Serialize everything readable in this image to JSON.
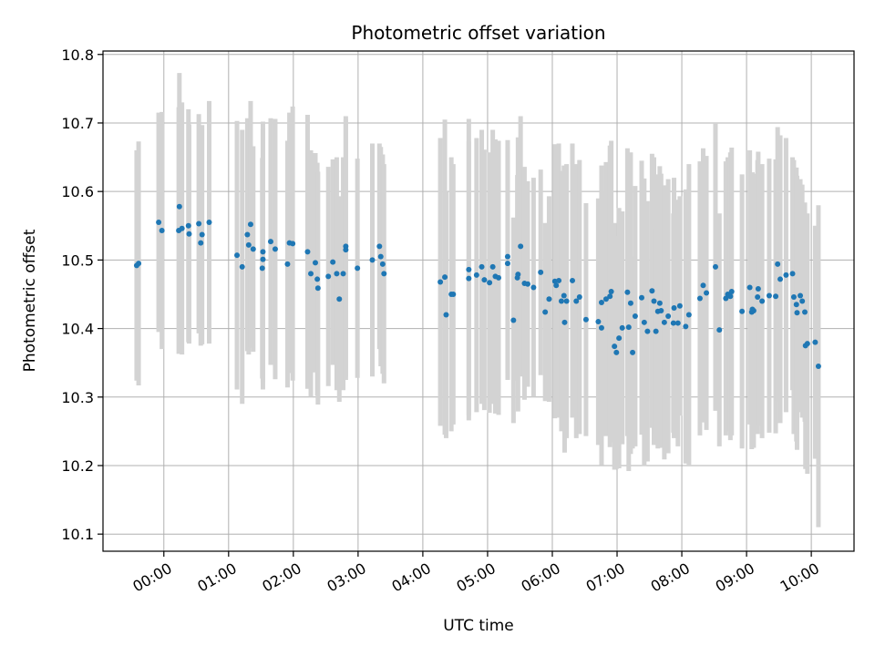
{
  "chart_data": {
    "type": "scatter",
    "title": "Photometric offset variation",
    "xlabel": "UTC time",
    "ylabel": "Photometric offset",
    "xlim_hours": [
      -0.94,
      10.66
    ],
    "ylim": [
      10.075,
      10.805
    ],
    "x_ticks": [
      {
        "hour": 0,
        "label": "00:00"
      },
      {
        "hour": 1,
        "label": "01:00"
      },
      {
        "hour": 2,
        "label": "02:00"
      },
      {
        "hour": 3,
        "label": "03:00"
      },
      {
        "hour": 4,
        "label": "04:00"
      },
      {
        "hour": 5,
        "label": "05:00"
      },
      {
        "hour": 6,
        "label": "06:00"
      },
      {
        "hour": 7,
        "label": "07:00"
      },
      {
        "hour": 8,
        "label": "08:00"
      },
      {
        "hour": 9,
        "label": "09:00"
      },
      {
        "hour": 10,
        "label": "10:00"
      }
    ],
    "y_ticks": [
      {
        "value": 10.1,
        "label": "10.1"
      },
      {
        "value": 10.2,
        "label": "10.2"
      },
      {
        "value": 10.3,
        "label": "10.3"
      },
      {
        "value": 10.4,
        "label": "10.4"
      },
      {
        "value": 10.5,
        "label": "10.5"
      },
      {
        "value": 10.6,
        "label": "10.6"
      },
      {
        "value": 10.7,
        "label": "10.7"
      },
      {
        "value": 10.8,
        "label": "10.8"
      }
    ],
    "grid": true,
    "colors": {
      "point": "#1f77b4",
      "errorbar": "#d3d3d3",
      "grid": "#b0b0b0"
    },
    "series": [
      {
        "name": "offset",
        "points": [
          [
            -0.42,
            10.492,
            0.168
          ],
          [
            -0.39,
            10.495,
            0.178
          ],
          [
            -0.08,
            10.555,
            0.16
          ],
          [
            -0.03,
            10.543,
            0.173
          ],
          [
            0.23,
            10.543,
            0.18
          ],
          [
            0.24,
            10.578,
            0.195
          ],
          [
            0.28,
            10.546,
            0.184
          ],
          [
            0.38,
            10.55,
            0.17
          ],
          [
            0.39,
            10.538,
            0.16
          ],
          [
            0.54,
            10.553,
            0.16
          ],
          [
            0.57,
            10.525,
            0.15
          ],
          [
            0.59,
            10.537,
            0.16
          ],
          [
            0.7,
            10.555,
            0.177
          ],
          [
            1.13,
            10.507,
            0.196
          ],
          [
            1.21,
            10.49,
            0.2
          ],
          [
            1.29,
            10.537,
            0.17
          ],
          [
            1.31,
            10.522,
            0.16
          ],
          [
            1.34,
            10.552,
            0.18
          ],
          [
            1.38,
            10.516,
            0.15
          ],
          [
            1.52,
            10.488,
            0.161
          ],
          [
            1.53,
            10.512,
            0.19
          ],
          [
            1.53,
            10.501,
            0.19
          ],
          [
            1.65,
            10.527,
            0.18
          ],
          [
            1.72,
            10.516,
            0.19
          ],
          [
            1.91,
            10.494,
            0.18
          ],
          [
            1.94,
            10.525,
            0.19
          ],
          [
            1.99,
            10.524,
            0.2
          ],
          [
            2.22,
            10.512,
            0.2
          ],
          [
            2.27,
            10.48,
            0.18
          ],
          [
            2.34,
            10.496,
            0.16
          ],
          [
            2.37,
            10.472,
            0.17
          ],
          [
            2.38,
            10.459,
            0.17
          ],
          [
            2.54,
            10.476,
            0.16
          ],
          [
            2.61,
            10.497,
            0.15
          ],
          [
            2.67,
            10.48,
            0.17
          ],
          [
            2.71,
            10.443,
            0.15
          ],
          [
            2.77,
            10.48,
            0.17
          ],
          [
            2.81,
            10.52,
            0.19
          ],
          [
            2.81,
            10.515,
            0.19
          ],
          [
            2.99,
            10.488,
            0.16
          ],
          [
            3.22,
            10.5,
            0.17
          ],
          [
            3.33,
            10.52,
            0.15
          ],
          [
            3.35,
            10.505,
            0.16
          ],
          [
            3.38,
            10.494,
            0.16
          ],
          [
            3.4,
            10.48,
            0.16
          ],
          [
            4.27,
            10.468,
            0.21
          ],
          [
            4.34,
            10.475,
            0.23
          ],
          [
            4.36,
            10.42,
            0.18
          ],
          [
            4.44,
            10.45,
            0.2
          ],
          [
            4.47,
            10.45,
            0.19
          ],
          [
            4.71,
            10.473,
            0.2
          ],
          [
            4.71,
            10.486,
            0.22
          ],
          [
            4.83,
            10.478,
            0.2
          ],
          [
            4.91,
            10.49,
            0.2
          ],
          [
            4.95,
            10.471,
            0.19
          ],
          [
            5.03,
            10.467,
            0.19
          ],
          [
            5.08,
            10.49,
            0.2
          ],
          [
            5.12,
            10.476,
            0.2
          ],
          [
            5.17,
            10.474,
            0.2
          ],
          [
            5.31,
            10.505,
            0.17
          ],
          [
            5.31,
            10.495,
            0.17
          ],
          [
            5.4,
            10.412,
            0.15
          ],
          [
            5.46,
            10.474,
            0.15
          ],
          [
            5.47,
            10.479,
            0.2
          ],
          [
            5.51,
            10.52,
            0.19
          ],
          [
            5.57,
            10.466,
            0.17
          ],
          [
            5.62,
            10.465,
            0.15
          ],
          [
            5.71,
            10.46,
            0.16
          ],
          [
            5.82,
            10.482,
            0.15
          ],
          [
            5.89,
            10.424,
            0.13
          ],
          [
            5.95,
            10.443,
            0.15
          ],
          [
            6.04,
            10.469,
            0.2
          ],
          [
            6.06,
            10.463,
            0.19
          ],
          [
            6.1,
            10.47,
            0.2
          ],
          [
            6.14,
            10.44,
            0.19
          ],
          [
            6.18,
            10.448,
            0.19
          ],
          [
            6.19,
            10.409,
            0.19
          ],
          [
            6.22,
            10.44,
            0.2
          ],
          [
            6.31,
            10.47,
            0.2
          ],
          [
            6.37,
            10.44,
            0.2
          ],
          [
            6.42,
            10.446,
            0.2
          ],
          [
            6.52,
            10.413,
            0.17
          ],
          [
            6.71,
            10.41,
            0.18
          ],
          [
            6.76,
            10.438,
            0.2
          ],
          [
            6.76,
            10.401,
            0.2
          ],
          [
            6.83,
            10.443,
            0.2
          ],
          [
            6.89,
            10.447,
            0.22
          ],
          [
            6.91,
            10.454,
            0.22
          ],
          [
            6.96,
            10.374,
            0.18
          ],
          [
            6.99,
            10.365,
            0.17
          ],
          [
            7.03,
            10.386,
            0.19
          ],
          [
            7.08,
            10.401,
            0.17
          ],
          [
            7.16,
            10.453,
            0.21
          ],
          [
            7.18,
            10.402,
            0.21
          ],
          [
            7.21,
            10.437,
            0.22
          ],
          [
            7.24,
            10.365,
            0.14
          ],
          [
            7.28,
            10.418,
            0.19
          ],
          [
            7.38,
            10.445,
            0.2
          ],
          [
            7.42,
            10.409,
            0.21
          ],
          [
            7.47,
            10.396,
            0.19
          ],
          [
            7.54,
            10.455,
            0.2
          ],
          [
            7.57,
            10.44,
            0.21
          ],
          [
            7.6,
            10.396,
            0.15
          ],
          [
            7.63,
            10.425,
            0.2
          ],
          [
            7.66,
            10.437,
            0.2
          ],
          [
            7.68,
            10.426,
            0.2
          ],
          [
            7.73,
            10.409,
            0.2
          ],
          [
            7.79,
            10.418,
            0.2
          ],
          [
            7.87,
            10.408,
            0.16
          ],
          [
            7.88,
            10.43,
            0.19
          ],
          [
            7.94,
            10.408,
            0.18
          ],
          [
            7.97,
            10.433,
            0.16
          ],
          [
            8.06,
            10.403,
            0.2
          ],
          [
            8.11,
            10.42,
            0.22
          ],
          [
            8.28,
            10.444,
            0.2
          ],
          [
            8.33,
            10.463,
            0.2
          ],
          [
            8.38,
            10.452,
            0.2
          ],
          [
            8.52,
            10.49,
            0.21
          ],
          [
            8.58,
            10.398,
            0.17
          ],
          [
            8.68,
            10.444,
            0.2
          ],
          [
            8.71,
            10.45,
            0.2
          ],
          [
            8.75,
            10.447,
            0.21
          ],
          [
            8.77,
            10.454,
            0.21
          ],
          [
            8.93,
            10.425,
            0.2
          ],
          [
            9.05,
            10.46,
            0.2
          ],
          [
            9.08,
            10.424,
            0.2
          ],
          [
            9.09,
            10.428,
            0.2
          ],
          [
            9.11,
            10.426,
            0.2
          ],
          [
            9.17,
            10.446,
            0.2
          ],
          [
            9.18,
            10.458,
            0.2
          ],
          [
            9.24,
            10.44,
            0.2
          ],
          [
            9.35,
            10.448,
            0.2
          ],
          [
            9.45,
            10.447,
            0.2
          ],
          [
            9.48,
            10.494,
            0.2
          ],
          [
            9.52,
            10.472,
            0.21
          ],
          [
            9.61,
            10.478,
            0.2
          ],
          [
            9.71,
            10.48,
            0.17
          ],
          [
            9.73,
            10.446,
            0.2
          ],
          [
            9.77,
            10.435,
            0.2
          ],
          [
            9.78,
            10.423,
            0.2
          ],
          [
            9.83,
            10.448,
            0.17
          ],
          [
            9.86,
            10.44,
            0.17
          ],
          [
            9.9,
            10.424,
            0.16
          ],
          [
            9.91,
            10.375,
            0.18
          ],
          [
            9.94,
            10.378,
            0.19
          ],
          [
            10.06,
            10.38,
            0.17
          ],
          [
            10.11,
            10.345,
            0.235
          ]
        ]
      }
    ]
  }
}
